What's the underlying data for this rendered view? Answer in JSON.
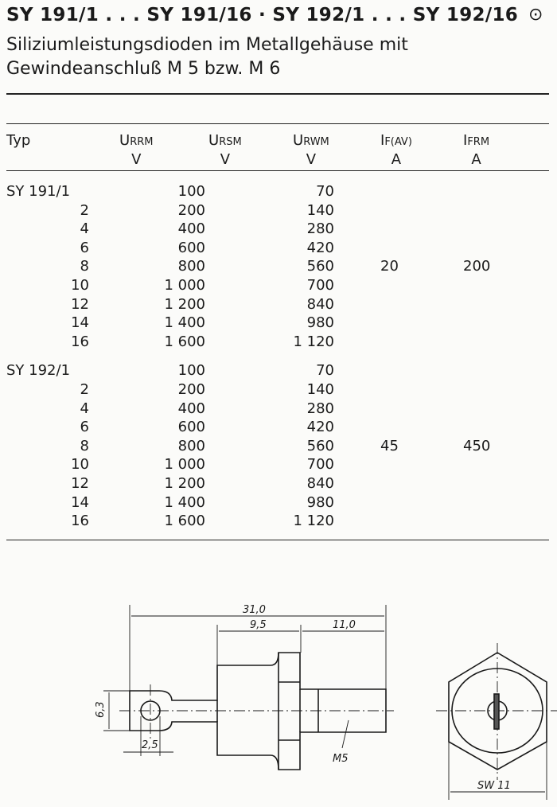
{
  "header": {
    "title": "SY 191/1 . . . SY 191/16 · SY 192/1 . . . SY 192/16",
    "symbol": "⊙",
    "subtitle_line1": "Siliziumleistungsdioden im Metallgehäuse mit",
    "subtitle_line2": "Gewindeanschluß M 5 bzw. M 6"
  },
  "table": {
    "columns": [
      {
        "main": "Typ",
        "sub": "",
        "unit": ""
      },
      {
        "main": "U",
        "sub": "RRM",
        "unit": "V"
      },
      {
        "main": "U",
        "sub": "RSM",
        "unit": "V"
      },
      {
        "main": "U",
        "sub": "RWM",
        "unit": "V"
      },
      {
        "main": "I",
        "sub": "F(AV)",
        "unit": "A"
      },
      {
        "main": "I",
        "sub": "FRM",
        "unit": "A"
      }
    ],
    "groups": [
      {
        "if_av": "20",
        "ifrm": "200",
        "rows": [
          [
            "SY 191/1",
            "100",
            "70"
          ],
          [
            "2",
            "200",
            "140"
          ],
          [
            "4",
            "400",
            "280"
          ],
          [
            "6",
            "600",
            "420"
          ],
          [
            "8",
            "800",
            "560"
          ],
          [
            "10",
            "1 000",
            "700"
          ],
          [
            "12",
            "1 200",
            "840"
          ],
          [
            "14",
            "1 400",
            "980"
          ],
          [
            "16",
            "1 600",
            "1 120"
          ]
        ]
      },
      {
        "if_av": "45",
        "ifrm": "450",
        "rows": [
          [
            "SY 192/1",
            "100",
            "70"
          ],
          [
            "2",
            "200",
            "140"
          ],
          [
            "4",
            "400",
            "280"
          ],
          [
            "6",
            "600",
            "420"
          ],
          [
            "8",
            "800",
            "560"
          ],
          [
            "10",
            "1 000",
            "700"
          ],
          [
            "12",
            "1 200",
            "840"
          ],
          [
            "14",
            "1 400",
            "980"
          ],
          [
            "16",
            "1 600",
            "1 120"
          ]
        ]
      }
    ]
  },
  "drawing": {
    "dim_total": "31,0",
    "dim_body": "9,5",
    "dim_thread": "11,0",
    "dim_lug": "6,3",
    "dim_hole": "2,5",
    "thread_label": "M5",
    "hex_label": "SW 11"
  }
}
